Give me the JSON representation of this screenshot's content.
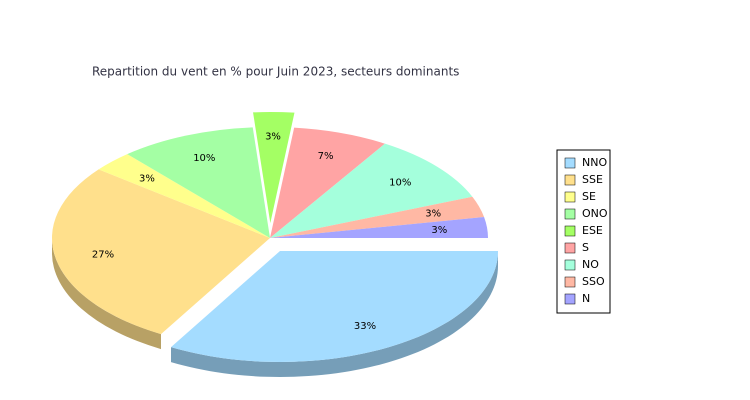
{
  "chart_data": {
    "type": "pie3d",
    "title": "Repartition du vent en % pour Juin 2023, secteurs dominants",
    "categories": [
      "NNO",
      "SSE",
      "SE",
      "ONO",
      "ESE",
      "S",
      "NO",
      "SSO",
      "N"
    ],
    "values": [
      33,
      27,
      3,
      10,
      3,
      7,
      10,
      3,
      3
    ],
    "value_labels": [
      "33%",
      "27%",
      "3%",
      "10%",
      "3%",
      "7%",
      "10%",
      "3%",
      "3%"
    ],
    "colors": [
      "#a4dcff",
      "#ffe08c",
      "#ffff8c",
      "#a4ffa4",
      "#a4ff64",
      "#ffa4a4",
      "#a4ffdc",
      "#ffb8a4",
      "#a4a4ff"
    ],
    "exploded": [
      true,
      false,
      false,
      false,
      true,
      false,
      false,
      false,
      false
    ],
    "legend": "right"
  }
}
